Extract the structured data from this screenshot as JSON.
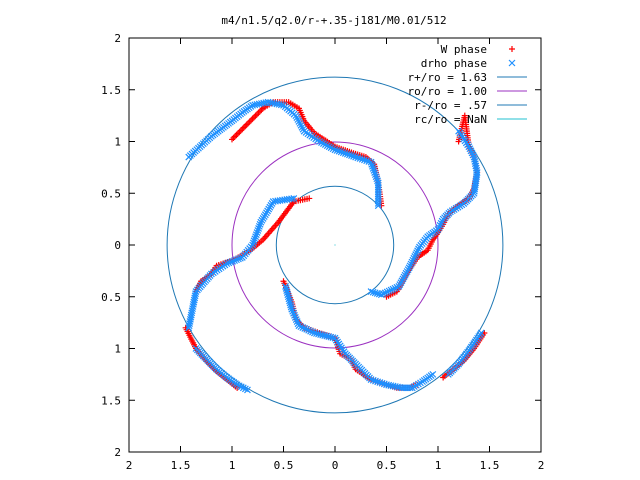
{
  "chart_data": {
    "type": "scatter",
    "title": "m4/n1.5/q2.0/r-+.35-j181/M0.01/512",
    "xlim": [
      -2,
      2
    ],
    "ylim": [
      -2,
      2
    ],
    "xticks": [
      -2,
      -1.5,
      -1,
      -0.5,
      0,
      0.5,
      1,
      1.5,
      2
    ],
    "yticks": [
      -2,
      -1.5,
      -1,
      -0.5,
      0,
      0.5,
      1,
      1.5,
      2
    ],
    "xtick_labels": [
      "2",
      "1.5",
      "1",
      "0.5",
      "0",
      "0.5",
      "1",
      "1.5",
      "2"
    ],
    "ytick_labels": [
      "2",
      "1.5",
      "1",
      "0.5",
      "0",
      "0.5",
      "1",
      "1.5",
      "2"
    ],
    "grid": false,
    "legend_position": "top-right",
    "series": [
      {
        "name": "W phase",
        "marker": "plus",
        "color": "#ff0000",
        "arms": [
          {
            "x": [
              0.5,
              0.6,
              0.68,
              0.8,
              0.9,
              0.95,
              1.0,
              1.05,
              1.1,
              1.2,
              1.3,
              1.35,
              1.38,
              1.35,
              1.3,
              1.28,
              1.26,
              1.2
            ],
            "y": [
              -0.5,
              -0.45,
              -0.3,
              -0.12,
              -0.05,
              0.05,
              0.12,
              0.2,
              0.3,
              0.38,
              0.45,
              0.55,
              0.7,
              0.85,
              0.95,
              1.1,
              1.25,
              1.0
            ]
          },
          {
            "x": [
              0.45,
              0.42,
              0.38,
              0.3,
              0.2,
              0.0,
              -0.2,
              -0.3,
              -0.35,
              -0.45,
              -0.6,
              -0.7,
              -0.8,
              -0.9,
              -1.0
            ],
            "y": [
              0.38,
              0.6,
              0.78,
              0.85,
              0.88,
              0.95,
              1.08,
              1.2,
              1.32,
              1.38,
              1.38,
              1.32,
              1.22,
              1.12,
              1.02
            ]
          },
          {
            "x": [
              -0.25,
              -0.4,
              -0.55,
              -0.7,
              -0.82,
              -0.9,
              -1.0,
              -1.15,
              -1.2,
              -1.3,
              -1.35
            ],
            "y": [
              0.45,
              0.42,
              0.22,
              0.05,
              -0.05,
              -0.1,
              -0.15,
              -0.2,
              -0.28,
              -0.35,
              -0.45
            ]
          },
          {
            "x": [
              -0.5,
              -0.42,
              -0.38,
              -0.3,
              -0.15,
              0.0,
              0.05,
              0.15,
              0.2,
              0.35,
              0.5,
              0.6,
              0.72,
              0.8
            ],
            "y": [
              -0.35,
              -0.55,
              -0.72,
              -0.8,
              -0.85,
              -0.9,
              -1.05,
              -1.1,
              -1.2,
              -1.3,
              -1.35,
              -1.38,
              -1.38,
              -1.35
            ]
          },
          {
            "x": [
              -1.45,
              -1.35,
              -1.25,
              -1.15,
              -1.05,
              -0.95
            ],
            "y": [
              -0.8,
              -1.0,
              -1.12,
              -1.22,
              -1.3,
              -1.38
            ]
          },
          {
            "x": [
              1.45,
              1.35,
              1.25,
              1.15,
              1.05
            ],
            "y": [
              -0.85,
              -1.0,
              -1.12,
              -1.2,
              -1.28
            ]
          }
        ]
      },
      {
        "name": "drho phase",
        "marker": "cross",
        "color": "#1e90ff",
        "arms": [
          {
            "x": [
              0.35,
              0.45,
              0.62,
              0.72,
              0.82,
              0.9,
              1.0,
              1.05,
              1.12,
              1.25,
              1.35,
              1.38,
              1.35,
              1.3,
              1.2
            ],
            "y": [
              -0.45,
              -0.48,
              -0.4,
              -0.22,
              -0.02,
              0.08,
              0.15,
              0.25,
              0.32,
              0.4,
              0.5,
              0.7,
              0.85,
              0.95,
              1.1
            ]
          },
          {
            "x": [
              0.42,
              0.42,
              0.35,
              0.2,
              0.0,
              -0.15,
              -0.3,
              -0.38,
              -0.5,
              -0.65,
              -0.8,
              -0.9,
              -1.0,
              -1.2,
              -1.42
            ],
            "y": [
              0.38,
              0.6,
              0.8,
              0.85,
              0.92,
              1.0,
              1.1,
              1.25,
              1.35,
              1.38,
              1.35,
              1.28,
              1.2,
              1.05,
              0.85
            ]
          },
          {
            "x": [
              -0.4,
              -0.6,
              -0.72,
              -0.8,
              -0.9,
              -1.05,
              -1.2,
              -1.35,
              -1.42
            ],
            "y": [
              0.45,
              0.42,
              0.22,
              0.0,
              -0.12,
              -0.18,
              -0.28,
              -0.45,
              -0.8
            ]
          },
          {
            "x": [
              -0.48,
              -0.42,
              -0.35,
              -0.2,
              0.0,
              0.1,
              0.2,
              0.35,
              0.5,
              0.65,
              0.75,
              0.85,
              0.95
            ],
            "y": [
              -0.4,
              -0.62,
              -0.78,
              -0.85,
              -0.9,
              -1.05,
              -1.15,
              -1.3,
              -1.35,
              -1.38,
              -1.38,
              -1.32,
              -1.25
            ]
          },
          {
            "x": [
              -1.35,
              -1.25,
              -1.15,
              -1.05,
              -0.95,
              -0.85
            ],
            "y": [
              -1.0,
              -1.1,
              -1.2,
              -1.28,
              -1.35,
              -1.4
            ]
          },
          {
            "x": [
              1.42,
              1.3,
              1.2,
              1.1
            ],
            "y": [
              -0.85,
              -1.02,
              -1.15,
              -1.25
            ]
          }
        ]
      }
    ],
    "circles": [
      {
        "label": "r+/ro = 1.63",
        "radius": 1.63,
        "color": "#1f78b4"
      },
      {
        "label": "ro/ro = 1.00",
        "radius": 1.0,
        "color": "#9b30c0"
      },
      {
        "label": "r-/ro = .57",
        "radius": 0.57,
        "color": "#1f78b4"
      },
      {
        "label": "rc/ro = NaN",
        "radius": null,
        "color": "#20c0d0"
      }
    ]
  }
}
